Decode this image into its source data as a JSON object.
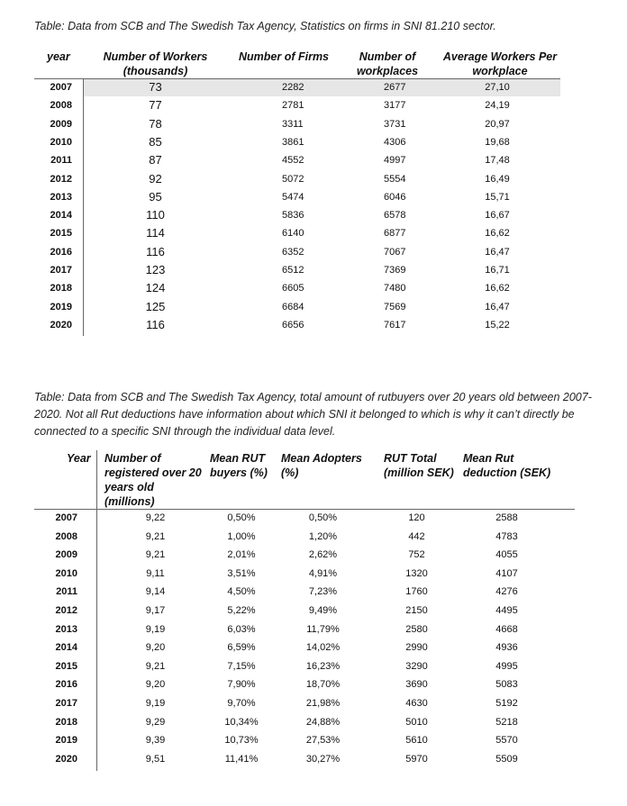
{
  "table1": {
    "caption": "Table: Data from SCB and The Swedish Tax Agency, Statistics on firms in SNI 81.210 sector.",
    "headers": {
      "year": "year",
      "workers_l1": "Number of Workers",
      "workers_l2": "(thousands)",
      "firms": "Number of Firms",
      "workplaces_l1": "Number of",
      "workplaces_l2": "workplaces",
      "avg_l1": "Average Workers Per",
      "avg_l2": "workplace"
    },
    "rows": [
      [
        "2007",
        "73",
        "2282",
        "2677",
        "27,10"
      ],
      [
        "2008",
        "77",
        "2781",
        "3177",
        "24,19"
      ],
      [
        "2009",
        "78",
        "3311",
        "3731",
        "20,97"
      ],
      [
        "2010",
        "85",
        "3861",
        "4306",
        "19,68"
      ],
      [
        "2011",
        "87",
        "4552",
        "4997",
        "17,48"
      ],
      [
        "2012",
        "92",
        "5072",
        "5554",
        "16,49"
      ],
      [
        "2013",
        "95",
        "5474",
        "6046",
        "15,71"
      ],
      [
        "2014",
        "110",
        "5836",
        "6578",
        "16,67"
      ],
      [
        "2015",
        "114",
        "6140",
        "6877",
        "16,62"
      ],
      [
        "2016",
        "116",
        "6352",
        "7067",
        "16,47"
      ],
      [
        "2017",
        "123",
        "6512",
        "7369",
        "16,71"
      ],
      [
        "2018",
        "124",
        "6605",
        "7480",
        "16,62"
      ],
      [
        "2019",
        "125",
        "6684",
        "7569",
        "16,47"
      ],
      [
        "2020",
        "116",
        "6656",
        "7617",
        "15,22"
      ]
    ]
  },
  "table2": {
    "caption_l1": "Table: Data from SCB and The Swedish Tax Agency, total amount of rutbuyers over 20 years old between 2007-",
    "caption_l2": "2020. Not all Rut deductions have information about which SNI it belonged to which is why it can’t directly be",
    "caption_l3": "connected to a specific SNI through the individual data level.",
    "headers": {
      "year": "Year",
      "reg_l1": "Number of",
      "reg_l2": "registered over 20",
      "reg_l3": "years old",
      "reg_l4": "(millions)",
      "buyers_l1": "Mean RUT",
      "buyers_l2": "buyers (%)",
      "adopters_l1": "Mean Adopters",
      "adopters_l2": "(%)",
      "total_l1": "RUT Total",
      "total_l2": "(million SEK)",
      "deduction_l1": "Mean Rut",
      "deduction_l2": "deduction (SEK)"
    },
    "rows": [
      [
        "2007",
        "9,22",
        "0,50%",
        "0,50%",
        "120",
        "2588"
      ],
      [
        "2008",
        "9,21",
        "1,00%",
        "1,20%",
        "442",
        "4783"
      ],
      [
        "2009",
        "9,21",
        "2,01%",
        "2,62%",
        "752",
        "4055"
      ],
      [
        "2010",
        "9,11",
        "3,51%",
        "4,91%",
        "1320",
        "4107"
      ],
      [
        "2011",
        "9,14",
        "4,50%",
        "7,23%",
        "1760",
        "4276"
      ],
      [
        "2012",
        "9,17",
        "5,22%",
        "9,49%",
        "2150",
        "4495"
      ],
      [
        "2013",
        "9,19",
        "6,03%",
        "11,79%",
        "2580",
        "4668"
      ],
      [
        "2014",
        "9,20",
        "6,59%",
        "14,02%",
        "2990",
        "4936"
      ],
      [
        "2015",
        "9,21",
        "7,15%",
        "16,23%",
        "3290",
        "4995"
      ],
      [
        "2016",
        "9,20",
        "7,90%",
        "18,70%",
        "3690",
        "5083"
      ],
      [
        "2017",
        "9,19",
        "9,70%",
        "21,98%",
        "4630",
        "5192"
      ],
      [
        "2018",
        "9,29",
        "10,34%",
        "24,88%",
        "5010",
        "5218"
      ],
      [
        "2019",
        "9,39",
        "10,73%",
        "27,53%",
        "5610",
        "5570"
      ],
      [
        "2020",
        "9,51",
        "11,41%",
        "30,27%",
        "5970",
        "5509"
      ]
    ]
  }
}
